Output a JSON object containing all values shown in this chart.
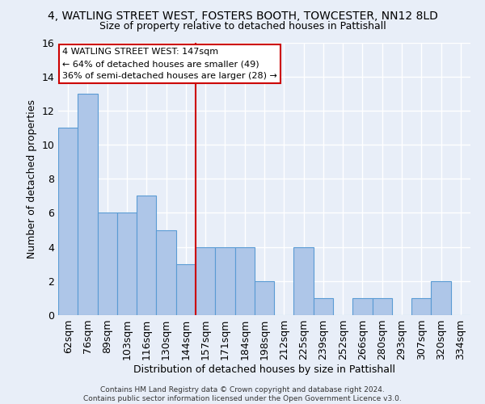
{
  "title": "4, WATLING STREET WEST, FOSTERS BOOTH, TOWCESTER, NN12 8LD",
  "subtitle": "Size of property relative to detached houses in Pattishall",
  "xlabel": "Distribution of detached houses by size in Pattishall",
  "ylabel": "Number of detached properties",
  "bin_labels": [
    "62sqm",
    "76sqm",
    "89sqm",
    "103sqm",
    "116sqm",
    "130sqm",
    "144sqm",
    "157sqm",
    "171sqm",
    "184sqm",
    "198sqm",
    "212sqm",
    "225sqm",
    "239sqm",
    "252sqm",
    "266sqm",
    "280sqm",
    "293sqm",
    "307sqm",
    "320sqm",
    "334sqm"
  ],
  "counts": [
    11,
    13,
    6,
    6,
    7,
    5,
    3,
    4,
    4,
    4,
    2,
    0,
    4,
    1,
    0,
    1,
    1,
    0,
    1,
    2,
    0
  ],
  "ylim": [
    0,
    16
  ],
  "yticks": [
    0,
    2,
    4,
    6,
    8,
    10,
    12,
    14,
    16
  ],
  "bar_color": "#aec6e8",
  "bar_edge_color": "#5a9bd4",
  "background_color": "#e8eef8",
  "grid_color": "#ffffff",
  "vline_x_index": 6.5,
  "vline_color": "#cc0000",
  "annotation_line1": "4 WATLING STREET WEST: 147sqm",
  "annotation_line2": "← 64% of detached houses are smaller (49)",
  "annotation_line3": "36% of semi-detached houses are larger (28) →",
  "annotation_box_color": "#ffffff",
  "annotation_border_color": "#cc0000",
  "footer_line1": "Contains HM Land Registry data © Crown copyright and database right 2024.",
  "footer_line2": "Contains public sector information licensed under the Open Government Licence v3.0."
}
